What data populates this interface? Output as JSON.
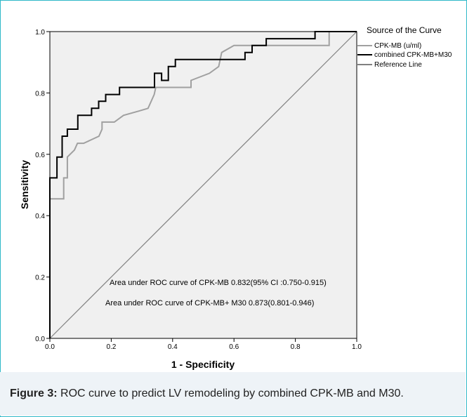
{
  "chart_data": {
    "type": "line",
    "xlabel": "1 - Specificity",
    "ylabel": "Sensitivity",
    "xlim": [
      0,
      1
    ],
    "ylim": [
      0,
      1
    ],
    "x_ticks": [
      "0.0",
      "0.2",
      "0.4",
      "0.6",
      "0.8",
      "1.0"
    ],
    "y_ticks": [
      "0.0",
      "0.2",
      "0.4",
      "0.6",
      "0.8",
      "1.0"
    ],
    "grid": false,
    "legend_title": "Source of the Curve",
    "legend_position": "right",
    "series": [
      {
        "name": "CPK-MB (u/ml)",
        "color": "#a0a0a0",
        "points": [
          [
            0,
            0
          ],
          [
            0,
            0.455
          ],
          [
            0.045,
            0.455
          ],
          [
            0.045,
            0.523
          ],
          [
            0.057,
            0.523
          ],
          [
            0.057,
            0.591
          ],
          [
            0.08,
            0.614
          ],
          [
            0.09,
            0.636
          ],
          [
            0.11,
            0.636
          ],
          [
            0.16,
            0.659
          ],
          [
            0.17,
            0.682
          ],
          [
            0.17,
            0.705
          ],
          [
            0.21,
            0.705
          ],
          [
            0.24,
            0.727
          ],
          [
            0.29,
            0.741
          ],
          [
            0.32,
            0.75
          ],
          [
            0.34,
            0.795
          ],
          [
            0.345,
            0.818
          ],
          [
            0.46,
            0.818
          ],
          [
            0.46,
            0.841
          ],
          [
            0.52,
            0.864
          ],
          [
            0.55,
            0.886
          ],
          [
            0.56,
            0.932
          ],
          [
            0.6,
            0.955
          ],
          [
            0.91,
            0.955
          ],
          [
            0.91,
            1.0
          ],
          [
            1.0,
            1.0
          ]
        ]
      },
      {
        "name": "combined CPK-MB+M30",
        "color": "#000000",
        "points": [
          [
            0,
            0
          ],
          [
            0,
            0.523
          ],
          [
            0.023,
            0.523
          ],
          [
            0.023,
            0.591
          ],
          [
            0.04,
            0.591
          ],
          [
            0.04,
            0.659
          ],
          [
            0.057,
            0.659
          ],
          [
            0.057,
            0.682
          ],
          [
            0.091,
            0.682
          ],
          [
            0.091,
            0.727
          ],
          [
            0.136,
            0.727
          ],
          [
            0.136,
            0.75
          ],
          [
            0.159,
            0.75
          ],
          [
            0.159,
            0.773
          ],
          [
            0.182,
            0.773
          ],
          [
            0.182,
            0.795
          ],
          [
            0.227,
            0.795
          ],
          [
            0.227,
            0.818
          ],
          [
            0.341,
            0.818
          ],
          [
            0.341,
            0.864
          ],
          [
            0.364,
            0.864
          ],
          [
            0.364,
            0.841
          ],
          [
            0.386,
            0.841
          ],
          [
            0.386,
            0.886
          ],
          [
            0.409,
            0.886
          ],
          [
            0.409,
            0.909
          ],
          [
            0.432,
            0.909
          ],
          [
            0.432,
            0.909
          ],
          [
            0.636,
            0.909
          ],
          [
            0.636,
            0.932
          ],
          [
            0.659,
            0.932
          ],
          [
            0.659,
            0.955
          ],
          [
            0.705,
            0.955
          ],
          [
            0.705,
            0.977
          ],
          [
            0.864,
            0.977
          ],
          [
            0.864,
            1.0
          ],
          [
            1.0,
            1.0
          ]
        ]
      },
      {
        "name": "Reference Line",
        "color": "#808080",
        "points": [
          [
            0,
            0
          ],
          [
            1,
            1
          ]
        ]
      }
    ],
    "annotations": [
      "Area under ROC curve of CPK-MB 0.832(95% CI :0.750-0.915)",
      "Area under ROC curve of CPK-MB+ M30  0.873(0.801-0.946)"
    ]
  },
  "caption": {
    "label": "Figure 3:",
    "text": " ROC curve to predict LV remodeling by combined CPK-MB and M30."
  }
}
